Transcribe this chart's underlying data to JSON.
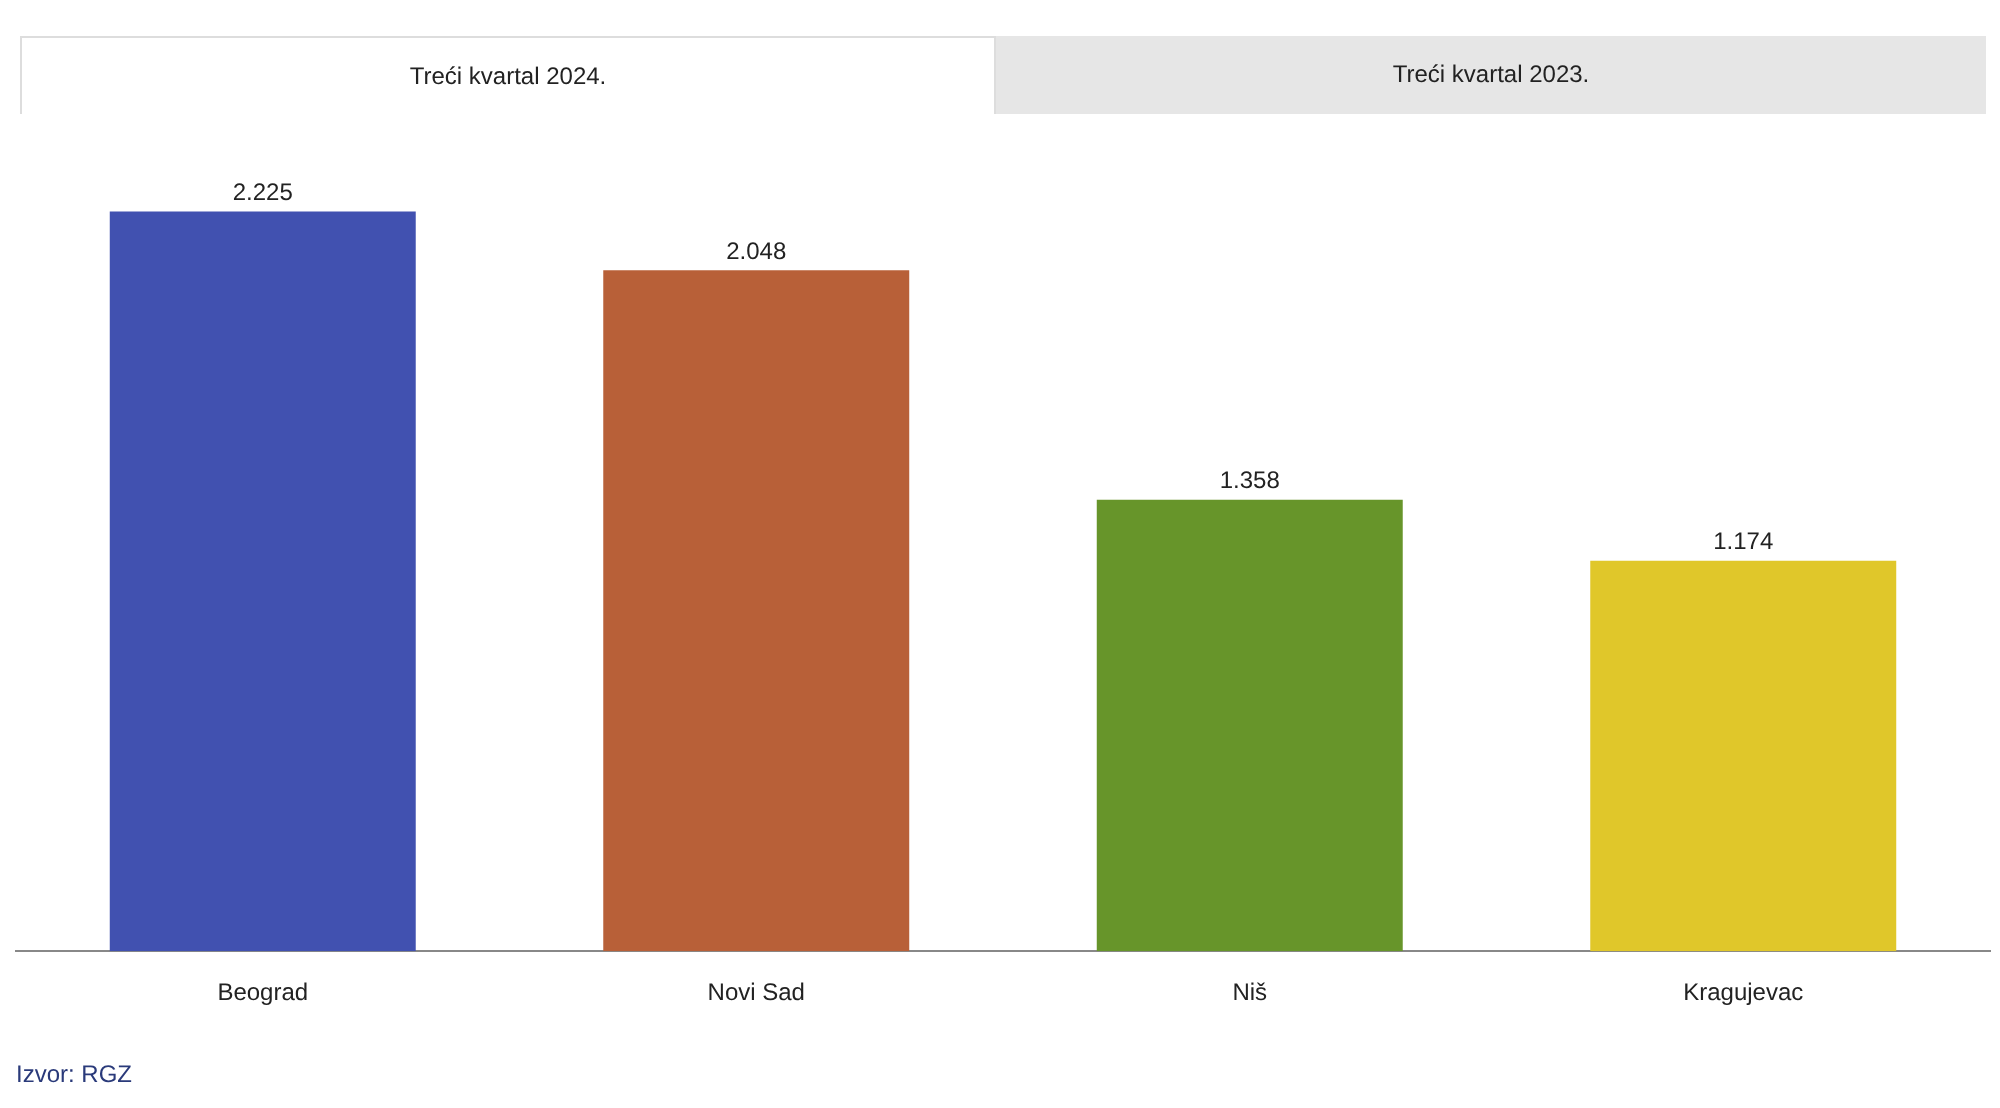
{
  "chart_data": {
    "type": "bar",
    "title": "Treći kvartal 2024.",
    "categories": [
      "Beograd",
      "Novi Sad",
      "Niš",
      "Kragujevac"
    ],
    "values": [
      2225,
      2048,
      1358,
      1174
    ],
    "value_labels": [
      "2.225",
      "2.048",
      "1.358",
      "1.174"
    ],
    "colors": [
      "#4151b0",
      "#b86038",
      "#67952a",
      "#e0c72a"
    ],
    "annotations": [
      "Treći kvartal 2023.",
      "Izvor: RGZ"
    ]
  }
}
